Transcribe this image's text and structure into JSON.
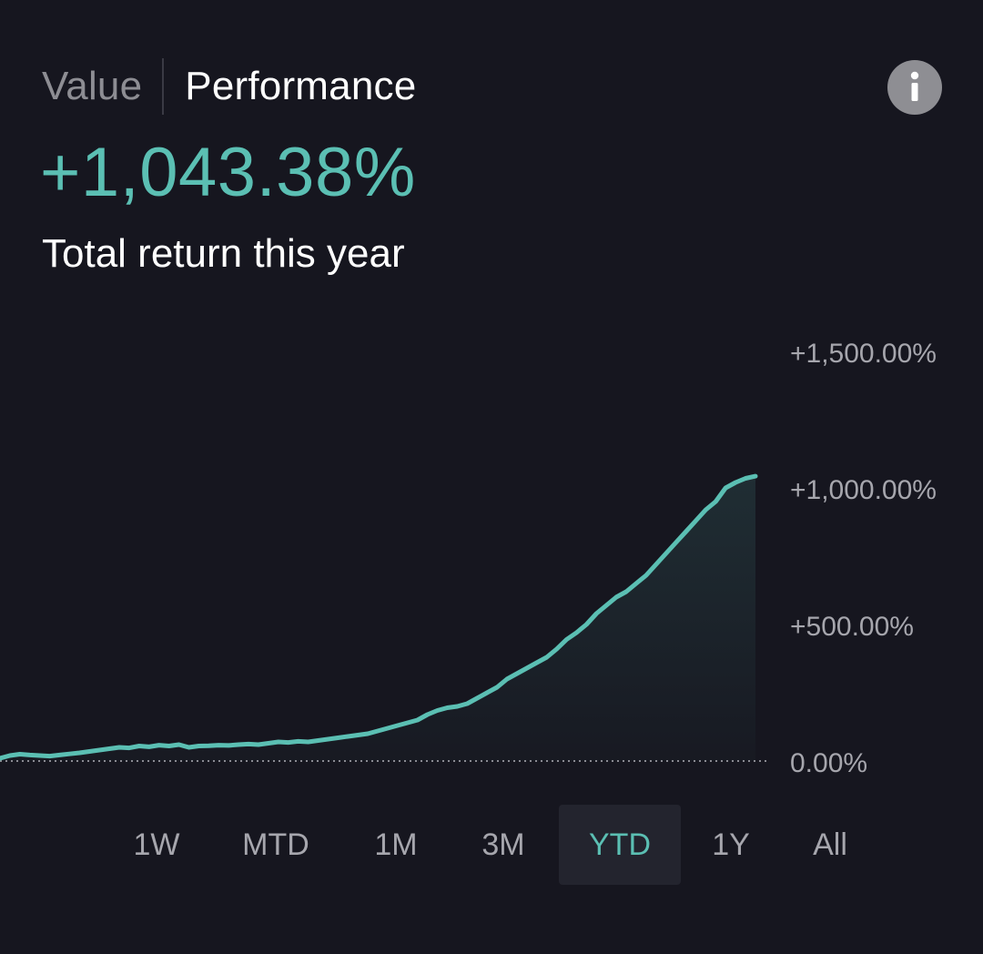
{
  "header": {
    "tab_value": "Value",
    "tab_performance": "Performance",
    "active_tab": "Performance",
    "info_icon": "info-icon"
  },
  "summary": {
    "total_return": "+1,043.38%",
    "caption": "Total return this year"
  },
  "colors": {
    "background": "#16161f",
    "accent": "#5bbfb3",
    "muted_text": "#a6a6ad",
    "selected_bg": "#23242e"
  },
  "chart_data": {
    "type": "area",
    "ylim": [
      0,
      1500
    ],
    "yticks": [
      0,
      500,
      1000,
      1500
    ],
    "ytick_labels": [
      "0.00%",
      "+500.00%",
      "+1,000.00%",
      "+1,500.00%"
    ],
    "baseline": 0,
    "grid": false,
    "series": [
      {
        "values": [
          10,
          20,
          25,
          22,
          20,
          18,
          22,
          26,
          30,
          35,
          40,
          45,
          50,
          48,
          55,
          52,
          58,
          55,
          60,
          50,
          55,
          56,
          58,
          57,
          60,
          62,
          60,
          65,
          70,
          68,
          72,
          70,
          75,
          80,
          85,
          90,
          95,
          100,
          110,
          120,
          130,
          140,
          150,
          170,
          185,
          195,
          200,
          210,
          230,
          250,
          270,
          300,
          320,
          340,
          360,
          380,
          410,
          445,
          470,
          500,
          540,
          570,
          600,
          620,
          650,
          680,
          720,
          760,
          800,
          840,
          880,
          920,
          950,
          1000,
          1020,
          1035,
          1043
        ]
      }
    ]
  },
  "time_ranges": [
    "1W",
    "MTD",
    "1M",
    "3M",
    "YTD",
    "1Y",
    "All"
  ],
  "selected_range": "YTD"
}
